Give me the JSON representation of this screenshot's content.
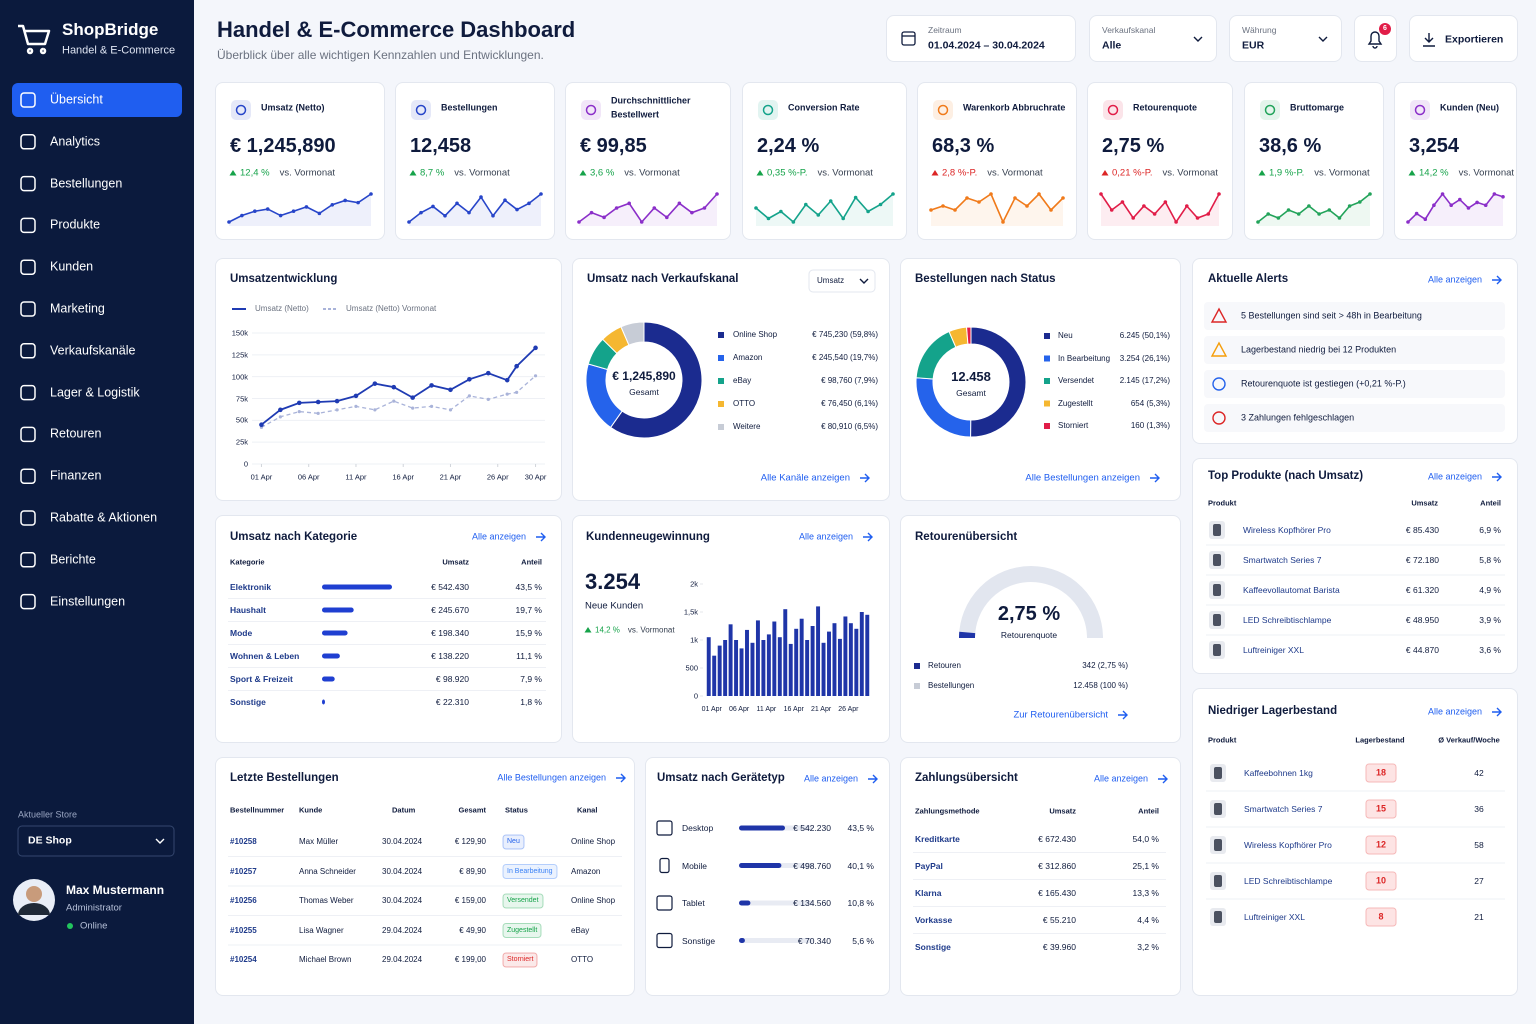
{
  "sidebar": {
    "brand": "ShopBridge",
    "tagline": "Handel & E-Commerce",
    "nav": [
      "Übersicht",
      "Analytics",
      "Bestellungen",
      "Produkte",
      "Kunden",
      "Marketing",
      "Verkaufskanäle",
      "Lager & Logistik",
      "Retouren",
      "Finanzen",
      "Rabatte & Aktionen",
      "Berichte",
      "Einstellungen"
    ],
    "active": 0,
    "store_label": "Aktueller Store",
    "store": "DE Shop",
    "user": {
      "name": "Max Mustermann",
      "role": "Administrator",
      "status": "Online"
    }
  },
  "header": {
    "title": "Handel & E-Commerce Dashboard",
    "subtitle": "Überblick über alle wichtigen Kennzahlen und Entwicklungen.",
    "filters": [
      {
        "label": "Zeitraum",
        "value": "01.04.2024 – 30.04.2024"
      },
      {
        "label": "Verkaufskanal",
        "value": "Alle"
      },
      {
        "label": "Währung",
        "value": "EUR"
      }
    ],
    "notifications": 6,
    "export": "Exportieren"
  },
  "kpis": [
    {
      "title": "Umsatz (Netto)",
      "value": "€ 1,245,890",
      "change": "12,4 %",
      "trend": "up",
      "positive": true,
      "compare": "vs. Vormonat",
      "color": "#2745c9",
      "spark": [
        30,
        33,
        35,
        36,
        33,
        35,
        37,
        34,
        38,
        40,
        39,
        43
      ]
    },
    {
      "title": "Bestellungen",
      "value": "12,458",
      "change": "8,7 %",
      "trend": "up",
      "positive": true,
      "compare": "vs. Vormonat",
      "color": "#2745c9",
      "spark": [
        31,
        34,
        36,
        33,
        37,
        34,
        39,
        33,
        38,
        35,
        37,
        40
      ]
    },
    {
      "title": "Durchschnittlicher Bestellwert",
      "value": "€ 99,85",
      "change": "3,6 %",
      "trend": "up",
      "positive": true,
      "compare": "vs. Vormonat",
      "color": "#8b2fc9",
      "spark": [
        34,
        36,
        35,
        37,
        38,
        34,
        37,
        35,
        38,
        36,
        37,
        40
      ]
    },
    {
      "title": "Conversion Rate",
      "value": "2,24 %",
      "change": "0,35 %-P.",
      "trend": "up",
      "positive": true,
      "compare": "vs. Vormonat",
      "color": "#14a38b",
      "spark": [
        35,
        32,
        34,
        31,
        36,
        33,
        37,
        32,
        38,
        34,
        36,
        39
      ]
    },
    {
      "title": "Warenkorb Abbruchrate",
      "value": "68,3 %",
      "change": "2,8 %-P.",
      "trend": "up",
      "positive": false,
      "compare": "vs. Vormonat",
      "color": "#f07a1a",
      "spark": [
        34,
        35,
        34,
        37,
        36,
        38,
        31,
        37,
        35,
        38,
        34,
        37
      ]
    },
    {
      "title": "Retourenquote",
      "value": "2,75 %",
      "change": "0,21 %-P.",
      "trend": "up",
      "positive": false,
      "compare": "vs. Vormonat",
      "color": "#e11d48",
      "spark": [
        38,
        34,
        36,
        32,
        35,
        33,
        36,
        31,
        35,
        32,
        33,
        38
      ]
    },
    {
      "title": "Bruttomarge",
      "value": "38,6 %",
      "change": "1,9 %-P.",
      "trend": "up",
      "positive": true,
      "compare": "vs. Vormonat",
      "color": "#22a35a",
      "spark": [
        33,
        35,
        34,
        36,
        35,
        37,
        35,
        36,
        34,
        37,
        38,
        40
      ]
    },
    {
      "title": "Kunden (Neu)",
      "value": "3,254",
      "change": "14,2 %",
      "trend": "up",
      "positive": true,
      "compare": "vs. Vormonat",
      "color": "#8b2fc9",
      "spark": [
        30,
        33,
        31,
        36,
        40,
        36,
        38,
        35,
        37,
        36,
        40,
        39
      ]
    }
  ],
  "revenue_trend": {
    "title": "Umsatzentwicklung",
    "chart": {
      "type": "line",
      "x": [
        1,
        3,
        5,
        7,
        9,
        11,
        13,
        15,
        17,
        19,
        21,
        23,
        25,
        27,
        28,
        30
      ],
      "series": [
        {
          "name": "Umsatz (Netto)",
          "color": "#1f3bb3",
          "dashed": false,
          "values": [
            45000,
            62000,
            70000,
            71000,
            72000,
            78000,
            92000,
            88000,
            76000,
            90000,
            85000,
            97000,
            104000,
            96000,
            112000,
            133000
          ]
        },
        {
          "name": "Umsatz (Netto) Vormonat",
          "color": "#a9b3d9",
          "dashed": true,
          "values": [
            42000,
            54000,
            60000,
            58000,
            62000,
            66000,
            62000,
            72000,
            64000,
            66000,
            62000,
            78000,
            74000,
            80000,
            82000,
            101000
          ]
        }
      ],
      "xlim": [
        0,
        31
      ],
      "xticks": [
        {
          "value": 1,
          "label": "01 Apr"
        },
        {
          "value": 6,
          "label": "06 Apr"
        },
        {
          "value": 11,
          "label": "11 Apr"
        },
        {
          "value": 16,
          "label": "16 Apr"
        },
        {
          "value": 21,
          "label": "21 Apr"
        },
        {
          "value": 26,
          "label": "26 Apr"
        },
        {
          "value": 30,
          "label": "30 Apr"
        }
      ],
      "ylim": [
        0,
        150000
      ],
      "yticks": [
        0,
        {
          "value": 25000,
          "label": "25k"
        },
        {
          "value": 50000,
          "label": "50k"
        },
        {
          "value": 75000,
          "label": "75k"
        },
        {
          "value": 100000,
          "label": "100k"
        },
        {
          "value": 125000,
          "label": "125k"
        },
        {
          "value": 150000,
          "label": "150k"
        }
      ],
      "grid": true
    }
  },
  "channels": {
    "title": "Umsatz nach Verkaufskanal",
    "dropdown": "Umsatz",
    "center_value": "€ 1,245,890",
    "center_label": "Gesamt",
    "link": "Alle Kanäle anzeigen",
    "chart": {
      "type": "pie",
      "categories": [
        "Online Shop",
        "Amazon",
        "eBay",
        "OTTO",
        "Weitere"
      ],
      "values": [
        745230,
        245540,
        98760,
        76450,
        80910
      ],
      "value_labels": [
        "€ 745,230 (59,8%)",
        "€ 245,540 (19,7%)",
        "€ 98,760 (7,9%)",
        "€ 76,450 (6,1%)",
        "€ 80,910 (6,5%)"
      ],
      "colors": [
        "#1b2b8f",
        "#2563eb",
        "#14a38b",
        "#f5b731",
        "#c7ccd6"
      ]
    }
  },
  "order_status": {
    "title": "Bestellungen nach Status",
    "center_value": "12.458",
    "center_label": "Gesamt",
    "link": "Alle Bestellungen anzeigen",
    "chart": {
      "type": "pie",
      "categories": [
        "Neu",
        "In Bearbeitung",
        "Versendet",
        "Zugestellt",
        "Storniert"
      ],
      "values": [
        6245,
        3254,
        2145,
        654,
        160
      ],
      "value_labels": [
        "6.245 (50,1%)",
        "3.254 (26,1%)",
        "2.145 (17,2%)",
        "654 (5,3%)",
        "160 (1,3%)"
      ],
      "colors": [
        "#1b2b8f",
        "#2563eb",
        "#14a38b",
        "#f5b731",
        "#e11d48"
      ]
    }
  },
  "alerts": {
    "title": "Aktuelle Alerts",
    "link": "Alle anzeigen",
    "items": [
      {
        "level": "error",
        "text": "5 Bestellungen sind seit > 48h in Bearbeitung"
      },
      {
        "level": "warning",
        "text": "Lagerbestand niedrig bei 12 Produkten"
      },
      {
        "level": "info",
        "text": "Retourenquote ist gestiegen (+0,21 %-P.)"
      },
      {
        "level": "error",
        "text": "3 Zahlungen fehlgeschlagen"
      }
    ]
  },
  "top_products": {
    "title": "Top Produkte (nach Umsatz)",
    "link": "Alle anzeigen",
    "columns": [
      "Produkt",
      "Umsatz",
      "Anteil"
    ],
    "rows": [
      [
        "Wireless Kopfhörer Pro",
        "€ 85.430",
        "6,9 %"
      ],
      [
        "Smartwatch Series 7",
        "€ 72.180",
        "5,8 %"
      ],
      [
        "Kaffeevollautomat Barista",
        "€ 61.320",
        "4,9 %"
      ],
      [
        "LED Schreibtischlampe",
        "€ 48.950",
        "3,9 %"
      ],
      [
        "Luftreiniger XXL",
        "€ 44.870",
        "3,6 %"
      ]
    ]
  },
  "categories": {
    "title": "Umsatz nach Kategorie",
    "link": "Alle anzeigen",
    "columns": [
      "Kategorie",
      "Umsatz",
      "Anteil"
    ],
    "rows": [
      {
        "name": "Elektronik",
        "revenue": "€ 542.430",
        "share": 43.5,
        "share_label": "43,5 %"
      },
      {
        "name": "Haushalt",
        "revenue": "€ 245.670",
        "share": 19.7,
        "share_label": "19,7 %"
      },
      {
        "name": "Mode",
        "revenue": "€ 198.340",
        "share": 15.9,
        "share_label": "15,9 %"
      },
      {
        "name": "Wohnen & Leben",
        "revenue": "€ 138.220",
        "share": 11.1,
        "share_label": "11,1 %"
      },
      {
        "name": "Sport & Freizeit",
        "revenue": "€ 98.920",
        "share": 7.9,
        "share_label": "7,9 %"
      },
      {
        "name": "Sonstige",
        "revenue": "€ 22.310",
        "share": 1.8,
        "share_label": "1,8 %"
      }
    ],
    "color": "#1f3fd1"
  },
  "new_customers": {
    "title": "Kundenneugewinnung",
    "link": "Alle anzeigen",
    "value": "3.254",
    "label": "Neue Kunden",
    "change": "14,2 %",
    "trend": "up",
    "positive": true,
    "compare": "vs. Vormonat",
    "chart": {
      "type": "bar",
      "color": "#1f35a8",
      "categories": [
        "01 Apr",
        null,
        null,
        null,
        null,
        "06 Apr",
        null,
        null,
        null,
        null,
        "11 Apr",
        null,
        null,
        null,
        null,
        "16 Apr",
        null,
        null,
        null,
        null,
        "21 Apr",
        null,
        null,
        null,
        null,
        "26 Apr",
        null,
        null,
        null,
        null
      ],
      "values": [
        1050,
        720,
        900,
        1000,
        1280,
        1000,
        850,
        1180,
        950,
        1350,
        1000,
        1100,
        1330,
        1050,
        1550,
        930,
        1200,
        1380,
        1000,
        1250,
        1600,
        950,
        1150,
        1300,
        1020,
        1420,
        1300,
        1200,
        1500,
        1450
      ],
      "ylim": [
        0,
        2000
      ],
      "yticks": [
        0,
        500,
        {
          "value": 1000,
          "label": "1k"
        },
        {
          "value": 1500,
          "label": "1,5k"
        },
        {
          "value": 2000,
          "label": "2k"
        }
      ]
    }
  },
  "returns": {
    "title": "Retourenübersicht",
    "value": "2,75 %",
    "label": "Retourenquote",
    "gauge": {
      "value": 2.75,
      "ylim": [
        0,
        100
      ],
      "color": "#1f35a8"
    },
    "legend": [
      {
        "name": "Retouren",
        "value": "342 (2,75 %)",
        "color": "#1b2b8f"
      },
      {
        "name": "Bestellungen",
        "value": "12.458 (100 %)",
        "color": "#c7ccd6"
      }
    ],
    "link": "Zur Retourenübersicht"
  },
  "low_stock": {
    "title": "Niedriger Lagerbestand",
    "link": "Alle anzeigen",
    "columns": [
      "Produkt",
      "Lagerbestand",
      "Ø Verkauf/Woche"
    ],
    "rows": [
      [
        "Kaffeebohnen 1kg",
        18,
        42
      ],
      [
        "Smartwatch Series 7",
        15,
        36
      ],
      [
        "Wireless Kopfhörer Pro",
        12,
        58
      ],
      [
        "LED Schreibtischlampe",
        10,
        27
      ],
      [
        "Luftreiniger XXL",
        8,
        21
      ]
    ]
  },
  "recent_orders": {
    "title": "Letzte Bestellungen",
    "link": "Alle Bestellungen anzeigen",
    "columns": [
      "Bestellnummer",
      "Kunde",
      "Datum",
      "Gesamt",
      "Status",
      "Kanal"
    ],
    "rows": [
      {
        "id": "#10258",
        "customer": "Max Müller",
        "date": "30.04.2024",
        "total": "€ 129,90",
        "status": "Neu",
        "status_color": "#2563eb",
        "channel": "Online Shop"
      },
      {
        "id": "#10257",
        "customer": "Anna Schneider",
        "date": "30.04.2024",
        "total": "€ 89,90",
        "status": "In Bearbeitung",
        "status_color": "#3b82f6",
        "channel": "Amazon"
      },
      {
        "id": "#10256",
        "customer": "Thomas Weber",
        "date": "30.04.2024",
        "total": "€ 159,00",
        "status": "Versendet",
        "status_color": "#16a34a",
        "channel": "Online Shop"
      },
      {
        "id": "#10255",
        "customer": "Lisa Wagner",
        "date": "29.04.2024",
        "total": "€ 49,90",
        "status": "Zugestellt",
        "status_color": "#16a34a",
        "channel": "eBay"
      },
      {
        "id": "#10254",
        "customer": "Michael Brown",
        "date": "29.04.2024",
        "total": "€ 199,00",
        "status": "Storniert",
        "status_color": "#dc2626",
        "channel": "OTTO"
      }
    ]
  },
  "devices": {
    "title": "Umsatz nach Gerätetyp",
    "link": "Alle anzeigen",
    "color": "#1f35a8",
    "rows": [
      {
        "name": "Desktop",
        "revenue": "€ 542.230",
        "share": 43.5,
        "share_label": "43,5 %"
      },
      {
        "name": "Mobile",
        "revenue": "€ 498.760",
        "share": 40.1,
        "share_label": "40,1 %"
      },
      {
        "name": "Tablet",
        "revenue": "€ 134.560",
        "share": 10.8,
        "share_label": "10,8 %"
      },
      {
        "name": "Sonstige",
        "revenue": "€ 70.340",
        "share": 5.6,
        "share_label": "5,6 %"
      }
    ]
  },
  "payments": {
    "title": "Zahlungsübersicht",
    "link": "Alle anzeigen",
    "columns": [
      "Zahlungsmethode",
      "Umsatz",
      "Anteil"
    ],
    "rows": [
      [
        "Kreditkarte",
        "€ 672.430",
        "54,0 %"
      ],
      [
        "PayPal",
        "€ 312.860",
        "25,1 %"
      ],
      [
        "Klarna",
        "€ 165.430",
        "13,3 %"
      ],
      [
        "Vorkasse",
        "€ 55.210",
        "4,4 %"
      ],
      [
        "Sonstige",
        "€ 39.960",
        "3,2 %"
      ]
    ]
  }
}
